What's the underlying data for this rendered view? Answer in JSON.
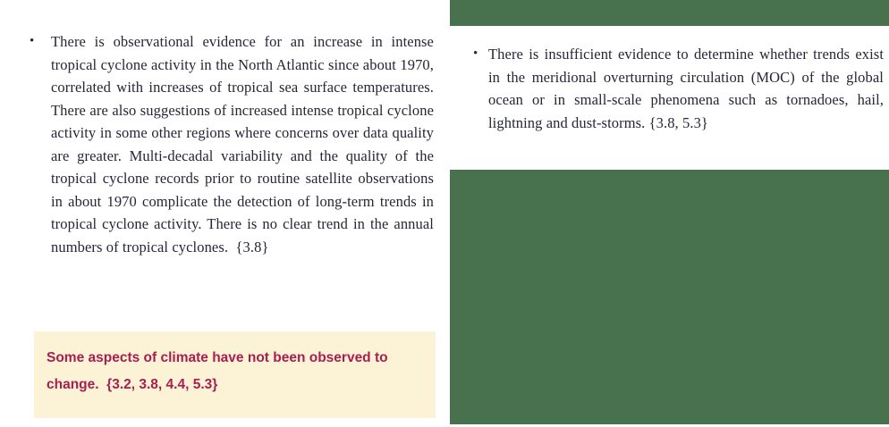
{
  "colors": {
    "green_block": "#48714d",
    "cream_box_bg": "#fcf3d6",
    "headline_maroon": "#a71e4f",
    "body_text": "#262636",
    "page_bg": "#ffffff"
  },
  "left_column": {
    "bullet_item": {
      "marker": "•",
      "text": "There is observational evidence for an increase in intense tropical cyclone activity in the North Atlantic since about 1970, correlated with increases of tropical sea surface temperatures. There are also suggestions of increased intense tropical cyclone activity in some other regions where concerns over data quality are greater. Multi-decadal variability and the quality of the tropical cyclone records prior to routine satellite observations in about 1970 complicate the detection of long-term trends in tropical cyclone activity. There is no clear trend in the annual numbers of tropical cyclones.  {3.8}"
    },
    "highlight_box": {
      "text": "Some aspects of climate have not been observed to change.  {3.2, 3.8, 4.4, 5.3}"
    }
  },
  "right_column": {
    "bullet_item": {
      "marker": "•",
      "text": "There is insufficient evidence to determine whether trends exist in the meridional overturning circulation (MOC) of the global ocean or in small-scale phenomena such as tornadoes, hail, lightning and dust-storms. {3.8, 5.3}"
    }
  }
}
